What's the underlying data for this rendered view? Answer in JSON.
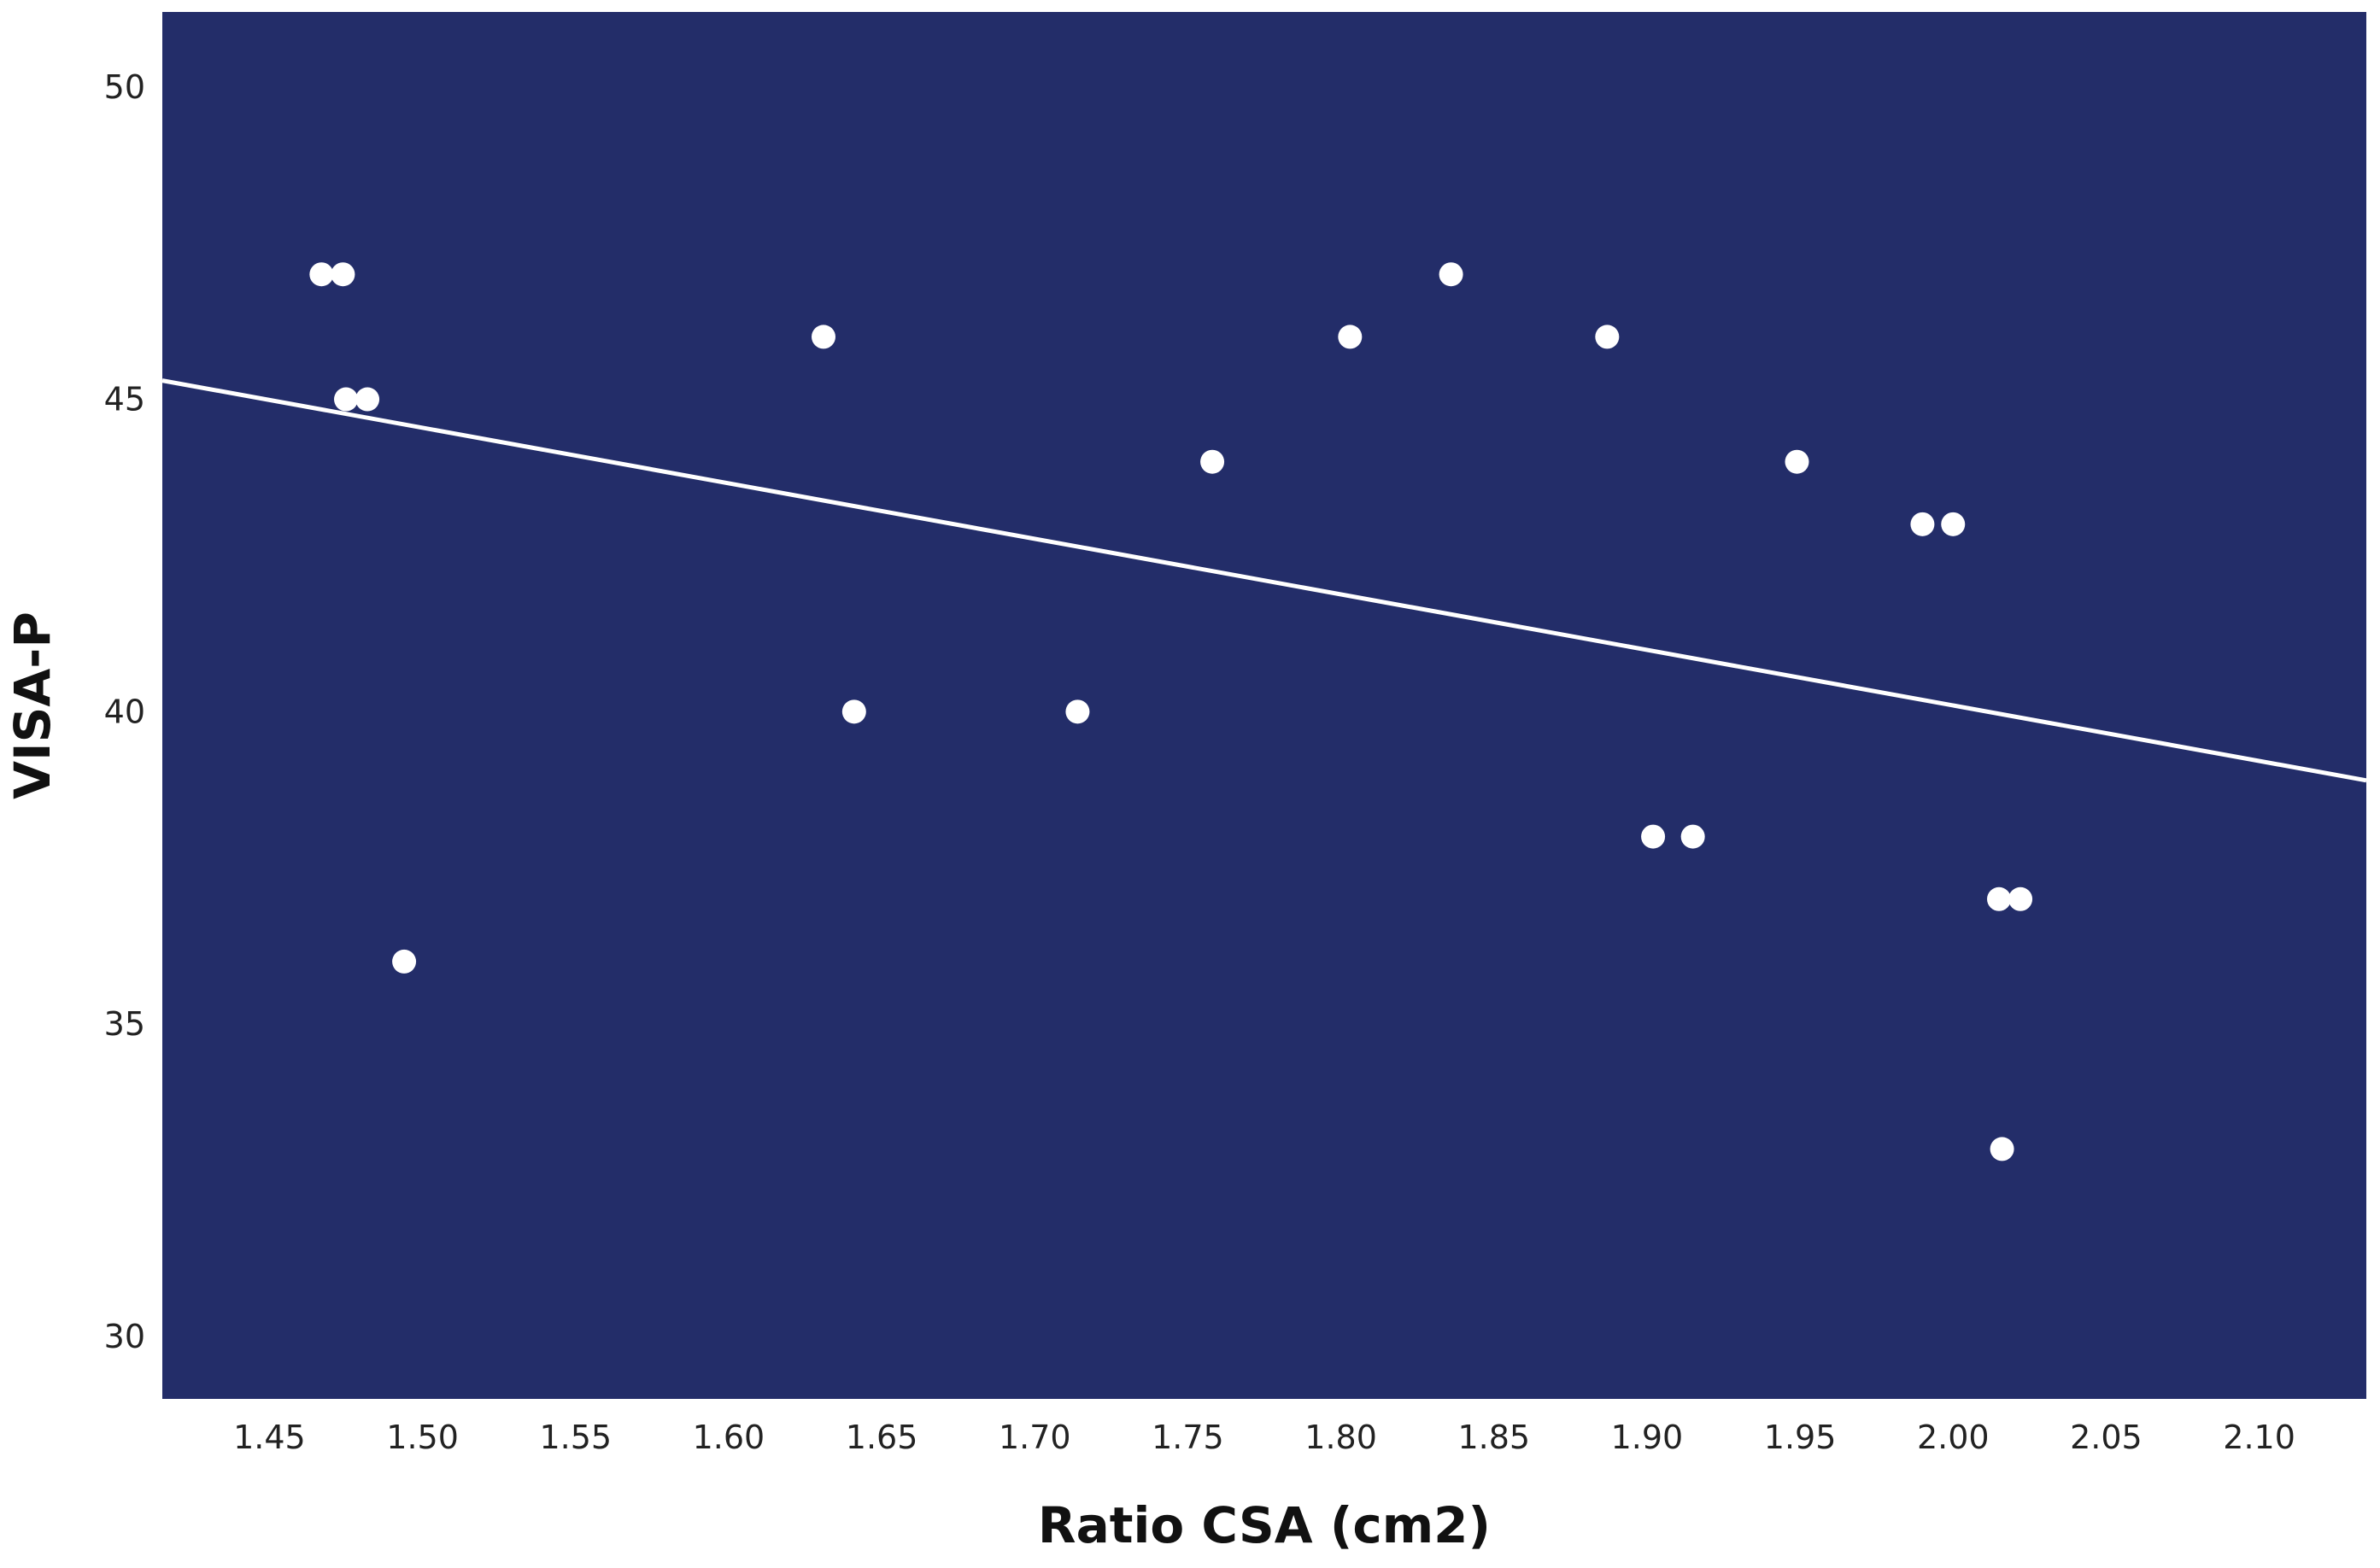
{
  "chart_data": {
    "type": "scatter",
    "title": "",
    "xlabel": "Ratio CSA (cm2)",
    "ylabel": "VISA-P",
    "xlim": [
      1.415,
      2.135
    ],
    "ylim": [
      29,
      51.2
    ],
    "xticks": [
      "1.45",
      "1.50",
      "1.55",
      "1.60",
      "1.65",
      "1.70",
      "1.75",
      "1.80",
      "1.85",
      "1.90",
      "1.95",
      "2.00",
      "2.05",
      "2.10"
    ],
    "yticks": [
      "30",
      "35",
      "40",
      "45",
      "50"
    ],
    "grid": false,
    "colors": {
      "plot_background": "#232d69",
      "points": "#ffffff",
      "fit_line": "#ffffff"
    },
    "points": [
      {
        "x": 1.467,
        "y": 47
      },
      {
        "x": 1.474,
        "y": 47
      },
      {
        "x": 1.475,
        "y": 45
      },
      {
        "x": 1.482,
        "y": 45
      },
      {
        "x": 1.494,
        "y": 36
      },
      {
        "x": 1.631,
        "y": 46
      },
      {
        "x": 1.641,
        "y": 40
      },
      {
        "x": 1.714,
        "y": 40
      },
      {
        "x": 1.758,
        "y": 44
      },
      {
        "x": 1.803,
        "y": 46
      },
      {
        "x": 1.836,
        "y": 47
      },
      {
        "x": 1.887,
        "y": 46
      },
      {
        "x": 1.902,
        "y": 38
      },
      {
        "x": 1.915,
        "y": 38
      },
      {
        "x": 1.949,
        "y": 44
      },
      {
        "x": 1.99,
        "y": 43
      },
      {
        "x": 2.0,
        "y": 43
      },
      {
        "x": 2.015,
        "y": 37
      },
      {
        "x": 2.022,
        "y": 37
      },
      {
        "x": 2.016,
        "y": 33
      }
    ],
    "fit_line": {
      "x": [
        1.415,
        2.135
      ],
      "y": [
        45.3,
        38.9
      ]
    }
  }
}
